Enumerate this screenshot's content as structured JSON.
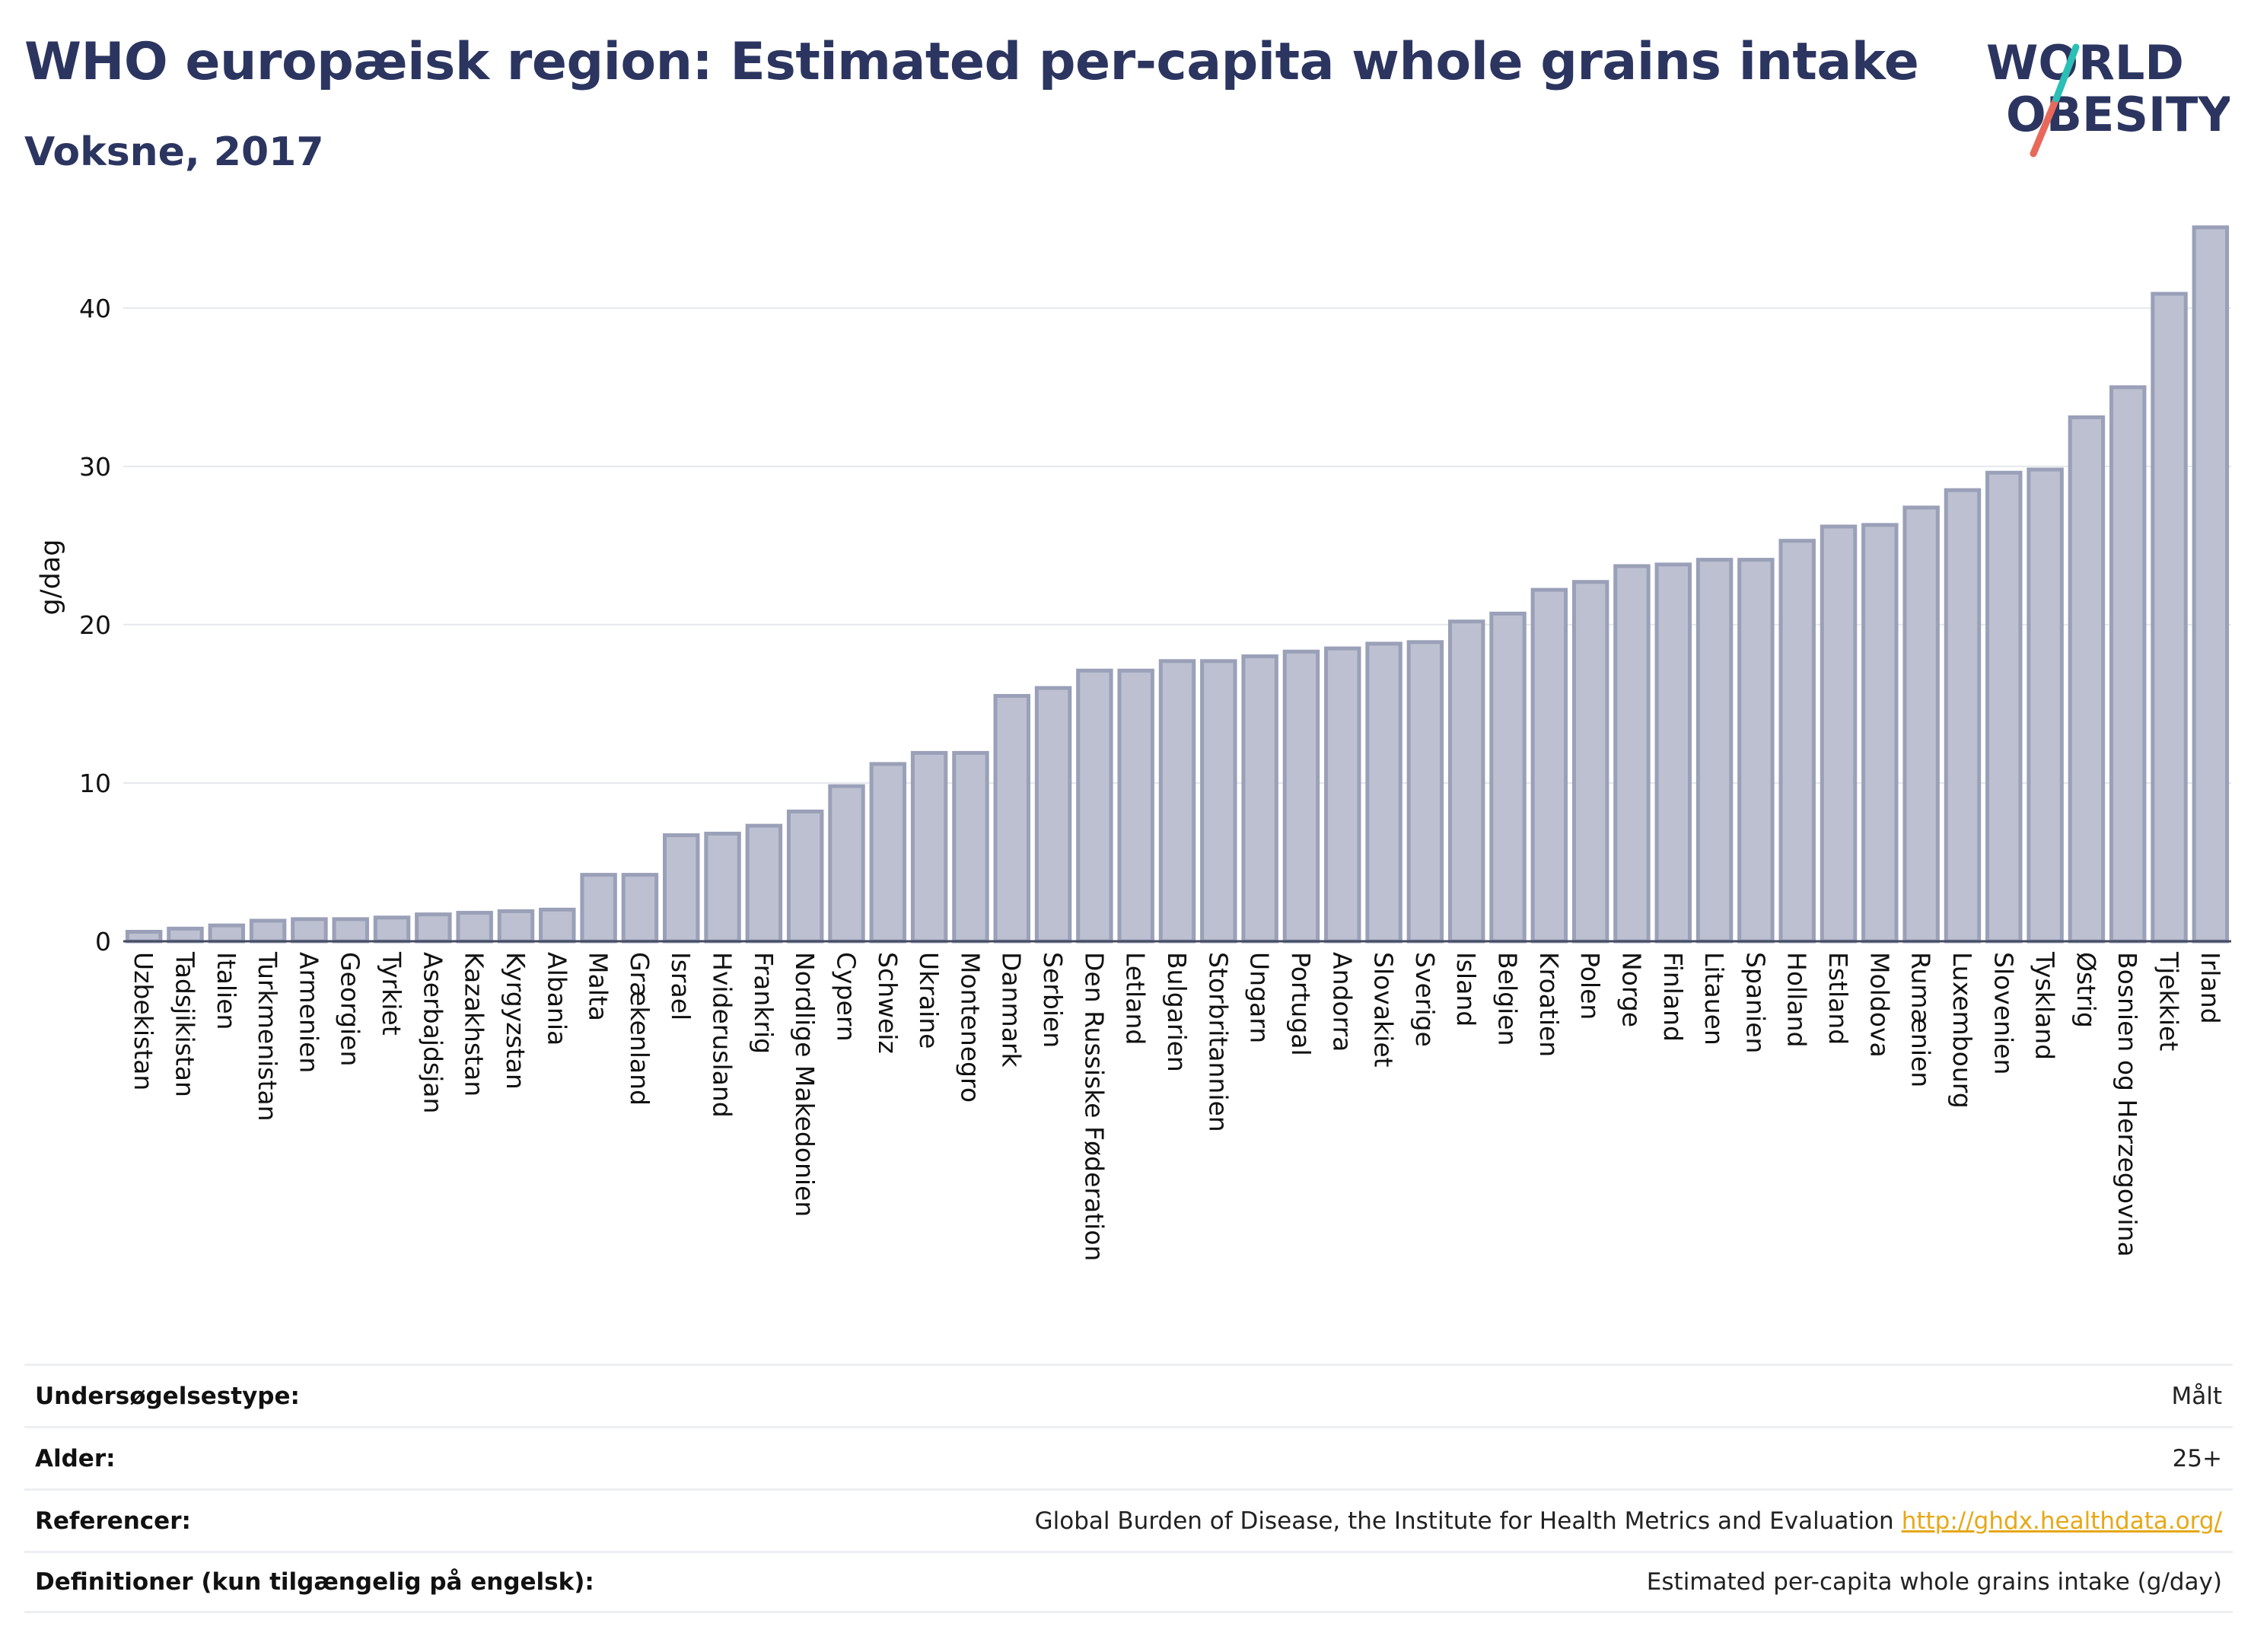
{
  "header": {
    "title": "WHO europæisk region: Estimated per-capita whole grains intake",
    "subtitle": "Voksne, 2017"
  },
  "logo": {
    "line1": "WORLD",
    "line2": "OBESITY"
  },
  "colors": {
    "bar_fill": "#bcc0d0",
    "bar_stroke": "#9aa0b8",
    "text": "#2b3560",
    "grid": "#e6e8ec",
    "accent_teal": "#2bbfb6",
    "accent_coral": "#e8695a",
    "link": "#e6a817"
  },
  "chart_data": {
    "type": "bar",
    "title": "WHO europæisk region: Estimated per-capita whole grains intake",
    "subtitle": "Voksne, 2017",
    "xlabel": "",
    "ylabel": "g/dag",
    "ylim": [
      0,
      46
    ],
    "yticks": [
      0,
      10,
      20,
      30,
      40
    ],
    "grid": true,
    "categories": [
      "Uzbekistan",
      "Tadsjikistan",
      "Italien",
      "Turkmenistan",
      "Armenien",
      "Georgien",
      "Tyrkiet",
      "Aserbajdsjan",
      "Kazakhstan",
      "Kyrgyzstan",
      "Albania",
      "Malta",
      "Grækenland",
      "Israel",
      "Hviderusland",
      "Frankrig",
      "Nordlige Makedonien",
      "Cypern",
      "Schweiz",
      "Ukraine",
      "Montenegro",
      "Danmark",
      "Serbien",
      "Den Russiske Føderation",
      "Letland",
      "Bulgarien",
      "Storbritannien",
      "Ungarn",
      "Portugal",
      "Andorra",
      "Slovakiet",
      "Sverige",
      "Island",
      "Belgien",
      "Kroatien",
      "Polen",
      "Norge",
      "Finland",
      "Litauen",
      "Spanien",
      "Holland",
      "Estland",
      "Moldova",
      "Rumænien",
      "Luxembourg",
      "Slovenien",
      "Tyskland",
      "Østrig",
      "Bosnien og Herzegovina",
      "Tjekkiet",
      "Irland"
    ],
    "values": [
      0.6,
      0.8,
      1.0,
      1.3,
      1.4,
      1.4,
      1.5,
      1.7,
      1.8,
      1.9,
      2.0,
      4.2,
      4.2,
      6.7,
      6.8,
      7.3,
      8.2,
      9.8,
      11.2,
      11.9,
      11.9,
      15.5,
      16.0,
      17.1,
      17.1,
      17.7,
      17.7,
      18.0,
      18.3,
      18.5,
      18.8,
      18.9,
      20.2,
      20.7,
      22.2,
      22.7,
      23.7,
      23.8,
      24.1,
      24.1,
      25.3,
      26.2,
      26.3,
      27.4,
      28.5,
      29.6,
      29.8,
      33.1,
      35.0,
      40.9,
      45.1
    ]
  },
  "info_table": [
    {
      "label": "Undersøgelsestype:",
      "value": "Målt",
      "link": ""
    },
    {
      "label": "Alder:",
      "value": "25+",
      "link": ""
    },
    {
      "label": "Referencer:",
      "value": "Global Burden of Disease, the Institute for Health Metrics and Evaluation",
      "link": "http://ghdx.healthdata.org/"
    },
    {
      "label": "Definitioner (kun tilgængelig på engelsk):",
      "value": "Estimated per-capita whole grains intake (g/day)",
      "link": ""
    }
  ]
}
